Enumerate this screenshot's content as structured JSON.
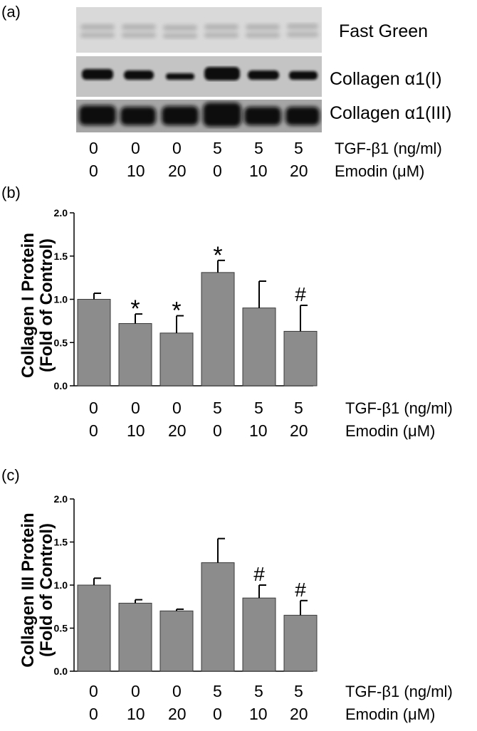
{
  "panels": {
    "a": "(a)",
    "b": "(b)",
    "c": "(c)"
  },
  "blot": {
    "labels": [
      "Fast Green",
      "Collagen α1(I)",
      "Collagen α1(III)"
    ]
  },
  "conditions": {
    "tgf_label": "TGF-β1 (ng/ml)",
    "emodin_label": "Emodin (μM)",
    "tgf": [
      "0",
      "0",
      "0",
      "5",
      "5",
      "5"
    ],
    "emodin": [
      "0",
      "10",
      "20",
      "0",
      "10",
      "20"
    ]
  },
  "colors": {
    "bar": "#8c8c8c"
  },
  "chart_data": [
    {
      "type": "bar",
      "ylabel_line1": "Collagen I Protein",
      "ylabel_line2": "(Fold of Control)",
      "ylim": [
        0,
        2.0
      ],
      "yticks": [
        "0.0",
        "0.5",
        "1.0",
        "1.5",
        "2.0"
      ],
      "categories": [
        "0 / 0",
        "0 / 10",
        "0 / 20",
        "5 / 0",
        "5 / 10",
        "5 / 20"
      ],
      "values": [
        1.0,
        0.72,
        0.61,
        1.31,
        0.9,
        0.63
      ],
      "errors": [
        0.07,
        0.11,
        0.2,
        0.14,
        0.31,
        0.3
      ],
      "annotations": [
        "",
        "*",
        "*",
        "*",
        "",
        "#"
      ]
    },
    {
      "type": "bar",
      "ylabel_line1": "Collagen III Protein",
      "ylabel_line2": "(Fold of Control)",
      "ylim": [
        0,
        2.0
      ],
      "yticks": [
        "0.0",
        "0.5",
        "1.0",
        "1.5",
        "2.0"
      ],
      "categories": [
        "0 / 0",
        "0 / 10",
        "0 / 20",
        "5 / 0",
        "5 / 10",
        "5 / 20"
      ],
      "values": [
        1.0,
        0.79,
        0.7,
        1.26,
        0.85,
        0.65
      ],
      "errors": [
        0.08,
        0.04,
        0.02,
        0.28,
        0.15,
        0.17
      ],
      "annotations": [
        "",
        "",
        "",
        "",
        "#",
        "#"
      ]
    }
  ]
}
